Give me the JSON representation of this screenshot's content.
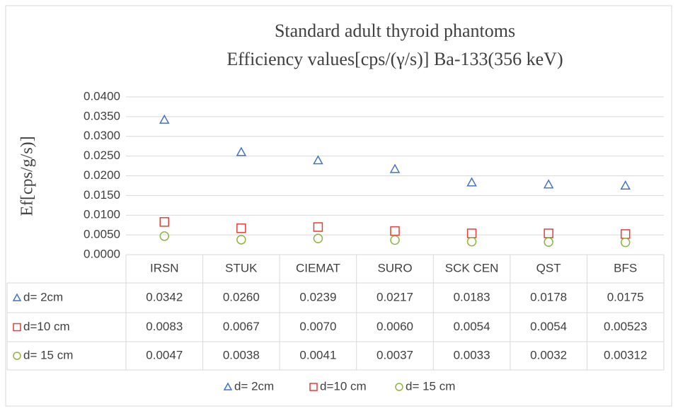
{
  "chart_data": {
    "type": "scatter",
    "title": [
      "Standard adult thyroid phantoms",
      "Efficiency values[cps/(γ/s)] Ba-133(356 keV)"
    ],
    "y_label": "Ef[cps/g/s)]",
    "categories": [
      "IRSN",
      "STUK",
      "CIEMAT",
      "SURO",
      "SCK CEN",
      "QST",
      "BFS"
    ],
    "ylim": [
      0,
      0.04
    ],
    "yticks": [
      {
        "value": 0,
        "label": "0.0000"
      },
      {
        "value": 0.005,
        "label": "0.0050"
      },
      {
        "value": 0.01,
        "label": "0.0100"
      },
      {
        "value": 0.015,
        "label": "0.0150"
      },
      {
        "value": 0.02,
        "label": "0.0200"
      },
      {
        "value": 0.025,
        "label": "0.0250"
      },
      {
        "value": 0.03,
        "label": "0.0300"
      },
      {
        "value": 0.035,
        "label": "0.0350"
      },
      {
        "value": 0.04,
        "label": "0.0400"
      }
    ],
    "grid": true,
    "legend": "bottom",
    "series": [
      {
        "name": "d= 2cm",
        "color": "#4472c4",
        "marker": "triangle",
        "values": [
          0.0342,
          0.026,
          0.0239,
          0.0217,
          0.0183,
          0.0178,
          0.0175
        ],
        "value_labels": [
          "0.0342",
          "0.0260",
          "0.0239",
          "0.0217",
          "0.0183",
          "0.0178",
          "0.0175"
        ]
      },
      {
        "name": "d=10 cm",
        "color": "#e0403a",
        "marker": "square",
        "values": [
          0.0083,
          0.0067,
          0.007,
          0.006,
          0.0054,
          0.0054,
          0.00523
        ],
        "value_labels": [
          "0.0083",
          "0.0067",
          "0.0070",
          "0.0060",
          "0.0054",
          "0.0054",
          "0.00523"
        ]
      },
      {
        "name": "d= 15 cm",
        "color": "#8fb443",
        "marker": "circle",
        "values": [
          0.0047,
          0.0038,
          0.0041,
          0.0037,
          0.0033,
          0.0032,
          0.00312
        ],
        "value_labels": [
          "0.0047",
          "0.0038",
          "0.0041",
          "0.0037",
          "0.0033",
          "0.0032",
          "0.00312"
        ]
      }
    ]
  }
}
